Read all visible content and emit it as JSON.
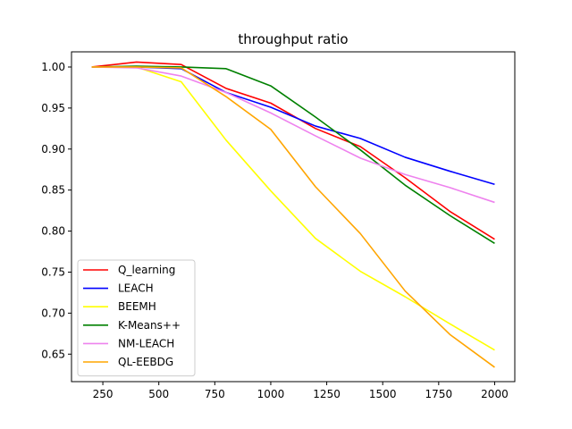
{
  "chart_data": {
    "type": "line",
    "title": "throughput ratio",
    "xlabel": "",
    "ylabel": "",
    "x": [
      200,
      400,
      600,
      800,
      1000,
      1200,
      1400,
      1600,
      1800,
      2000
    ],
    "xlim": [
      110,
      2090
    ],
    "ylim": [
      0.6165,
      1.0185
    ],
    "xticks": [
      250,
      500,
      750,
      1000,
      1250,
      1500,
      1750,
      2000
    ],
    "xtick_labels": [
      "250",
      "500",
      "750",
      "1000",
      "1250",
      "1500",
      "1750",
      "2000"
    ],
    "yticks": [
      0.65,
      0.7,
      0.75,
      0.8,
      0.85,
      0.9,
      0.95,
      1.0
    ],
    "ytick_labels": [
      "0.65",
      "0.70",
      "0.75",
      "0.80",
      "0.85",
      "0.90",
      "0.95",
      "1.00"
    ],
    "grid": false,
    "legend_position": "lower-left",
    "series": [
      {
        "name": "Q_learning",
        "color": "#ff0000",
        "values": [
          1.0,
          1.006,
          1.003,
          0.974,
          0.956,
          0.925,
          0.903,
          0.865,
          0.824,
          0.79
        ]
      },
      {
        "name": "LEACH",
        "color": "#0000ff",
        "values": [
          1.0,
          1.0,
          0.998,
          0.969,
          0.951,
          0.928,
          0.913,
          0.89,
          0.873,
          0.857
        ]
      },
      {
        "name": "BEEMH",
        "color": "#ffff00",
        "values": [
          1.0,
          1.0,
          0.982,
          0.911,
          0.849,
          0.791,
          0.751,
          0.72,
          0.687,
          0.655
        ]
      },
      {
        "name": "K-Means++",
        "color": "#008000",
        "values": [
          1.0,
          1.001,
          1.0,
          0.998,
          0.977,
          0.939,
          0.899,
          0.856,
          0.819,
          0.785
        ]
      },
      {
        "name": "NM-LEACH",
        "color": "#ee82ee",
        "values": [
          1.0,
          0.999,
          0.989,
          0.969,
          0.944,
          0.916,
          0.889,
          0.869,
          0.853,
          0.835
        ]
      },
      {
        "name": "QL-EEBDG",
        "color": "#ffa500",
        "values": [
          1.0,
          1.0,
          0.999,
          0.964,
          0.924,
          0.854,
          0.797,
          0.727,
          0.674,
          0.634
        ]
      }
    ]
  }
}
